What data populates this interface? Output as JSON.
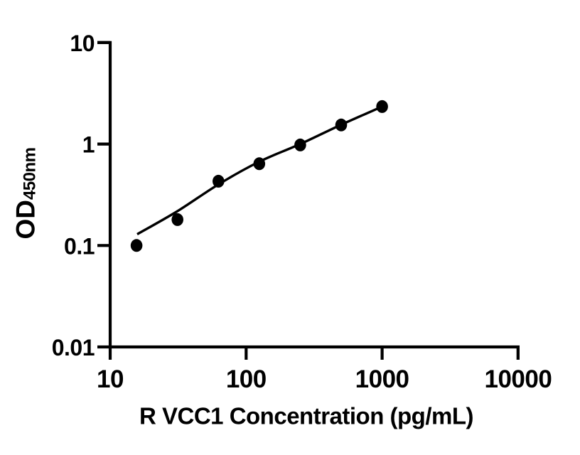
{
  "figure": {
    "background_color": "#ffffff",
    "ink_color": "#000000"
  },
  "chart_data": {
    "type": "scatter",
    "title": "",
    "xlabel": "R VCC1 Concentration (pg/mL)",
    "ylabel_main": "OD",
    "ylabel_sub": "450nm",
    "x_scale": "log",
    "y_scale": "log",
    "xlim": [
      10,
      10000
    ],
    "ylim": [
      0.01,
      10
    ],
    "x_ticks": [
      10,
      100,
      1000,
      10000
    ],
    "x_tick_labels": [
      "10",
      "100",
      "1000",
      "10000"
    ],
    "y_ticks": [
      0.01,
      0.1,
      1,
      10
    ],
    "y_tick_labels": [
      "0.01",
      "0.1",
      "1",
      "10"
    ],
    "grid": false,
    "legend": "none",
    "marker_color": "#000000",
    "line_color": "#000000",
    "series": [
      {
        "name": "standard-points",
        "type": "scatter",
        "marker": "filled-circle",
        "points": [
          {
            "x": 15.625,
            "y": 0.1
          },
          {
            "x": 31.25,
            "y": 0.18
          },
          {
            "x": 62.5,
            "y": 0.43
          },
          {
            "x": 125,
            "y": 0.64
          },
          {
            "x": 250,
            "y": 0.98
          },
          {
            "x": 500,
            "y": 1.54
          },
          {
            "x": 1000,
            "y": 2.34
          }
        ]
      },
      {
        "name": "fit-line",
        "type": "line",
        "points": [
          {
            "x": 15.8,
            "y": 0.129
          },
          {
            "x": 31.25,
            "y": 0.218
          },
          {
            "x": 62.5,
            "y": 0.4
          },
          {
            "x": 125,
            "y": 0.67
          },
          {
            "x": 250,
            "y": 1.0
          },
          {
            "x": 500,
            "y": 1.55
          },
          {
            "x": 1000,
            "y": 2.34
          }
        ]
      }
    ]
  }
}
